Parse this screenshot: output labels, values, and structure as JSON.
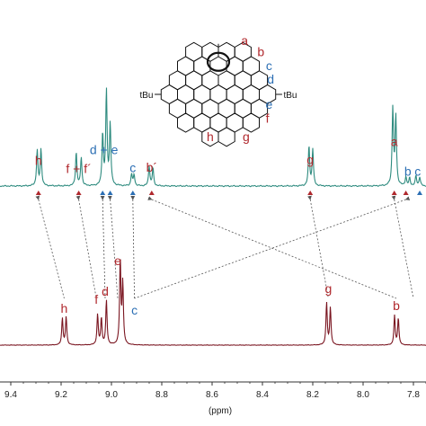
{
  "chart_data": {
    "type": "line",
    "title": "",
    "xlabel": "(ppm)",
    "ylabel": "",
    "xlim": [
      9.42,
      7.76
    ],
    "x_reversed": true,
    "x_ticks": [
      "9.4",
      "9.2",
      "9.0",
      "8.8",
      "8.6",
      "8.4",
      "8.2",
      "8.0",
      "7.8"
    ],
    "x_tick_values": [
      9.4,
      9.2,
      9.0,
      8.8,
      8.6,
      8.4,
      8.2,
      8.0,
      7.8
    ],
    "grid": false,
    "colors": {
      "top": "#2e8b7f",
      "bottom": "#7a1520",
      "red_label": "#b0282d",
      "blue_label": "#2c6fb4",
      "arrow": "#555555"
    },
    "series": [
      {
        "peaks": [
          {
            "x": 9.295,
            "h": 0.36
          },
          {
            "x": 9.28,
            "h": 0.37
          },
          {
            "x": 9.14,
            "h": 0.34
          },
          {
            "x": 9.12,
            "h": 0.29
          },
          {
            "x": 9.035,
            "h": 0.52
          },
          {
            "x": 9.02,
            "h": 0.95
          },
          {
            "x": 9.005,
            "h": 0.62
          },
          {
            "x": 8.92,
            "h": 0.12
          },
          {
            "x": 8.91,
            "h": 0.11
          },
          {
            "x": 8.85,
            "h": 0.2
          },
          {
            "x": 8.835,
            "h": 0.18
          },
          {
            "x": 8.215,
            "h": 0.4
          },
          {
            "x": 8.2,
            "h": 0.37
          },
          {
            "x": 7.882,
            "h": 0.78
          },
          {
            "x": 7.87,
            "h": 0.7
          },
          {
            "x": 7.83,
            "h": 0.09
          },
          {
            "x": 7.815,
            "h": 0.08
          },
          {
            "x": 7.79,
            "h": 0.1
          },
          {
            "x": 7.775,
            "h": 0.09
          }
        ],
        "labels": [
          {
            "text": "h",
            "x": 9.29,
            "color": "red",
            "pos": "above"
          },
          {
            "text": "f + f´",
            "x": 9.13,
            "color": "red",
            "pos": "above"
          },
          {
            "text": "d + e",
            "x": 9.03,
            "color": "blue",
            "pos": "above"
          },
          {
            "text": "c",
            "x": 8.915,
            "color": "blue",
            "pos": "above"
          },
          {
            "text": "b´",
            "x": 8.84,
            "color": "red",
            "pos": "above"
          },
          {
            "text": "g",
            "x": 8.21,
            "color": "red",
            "pos": "above"
          },
          {
            "text": "a",
            "x": 7.876,
            "color": "red",
            "pos": "above"
          },
          {
            "text": "b",
            "x": 7.822,
            "color": "blue",
            "pos": "above"
          },
          {
            "text": "c",
            "x": 7.783,
            "color": "blue",
            "pos": "above"
          }
        ],
        "markers": [
          {
            "x": 9.29,
            "color": "red"
          },
          {
            "x": 9.13,
            "color": "red"
          },
          {
            "x": 9.035,
            "color": "blue"
          },
          {
            "x": 9.005,
            "color": "blue"
          },
          {
            "x": 8.915,
            "color": "blue"
          },
          {
            "x": 8.84,
            "color": "red"
          },
          {
            "x": 8.21,
            "color": "red"
          },
          {
            "x": 7.876,
            "color": "red"
          },
          {
            "x": 7.83,
            "color": "red"
          },
          {
            "x": 7.775,
            "color": "blue"
          }
        ]
      },
      {
        "peaks": [
          {
            "x": 9.195,
            "h": 0.23
          },
          {
            "x": 9.18,
            "h": 0.24
          },
          {
            "x": 9.055,
            "h": 0.26
          },
          {
            "x": 9.04,
            "h": 0.23
          },
          {
            "x": 9.02,
            "h": 0.38
          },
          {
            "x": 8.965,
            "h": 0.72
          },
          {
            "x": 8.955,
            "h": 0.52
          },
          {
            "x": 8.145,
            "h": 0.36
          },
          {
            "x": 8.13,
            "h": 0.32
          },
          {
            "x": 7.875,
            "h": 0.25
          },
          {
            "x": 7.86,
            "h": 0.23
          }
        ],
        "labels": [
          {
            "text": "h",
            "x": 9.188,
            "color": "red"
          },
          {
            "text": "f",
            "x": 9.06,
            "color": "red"
          },
          {
            "text": "d",
            "x": 9.025,
            "color": "red"
          },
          {
            "text": "e",
            "x": 8.975,
            "color": "red"
          },
          {
            "text": "c",
            "x": 8.93,
            "color": "blue"
          },
          {
            "text": "g",
            "x": 8.138,
            "color": "red"
          },
          {
            "text": "b",
            "x": 7.868,
            "color": "red"
          }
        ]
      }
    ],
    "correlations": [
      {
        "from": 9.29,
        "to": 9.188
      },
      {
        "from": 9.13,
        "to": 9.06
      },
      {
        "from": 9.035,
        "to": 9.025
      },
      {
        "from": 9.005,
        "to": 8.975
      },
      {
        "from": 8.915,
        "to": 8.93
      },
      {
        "from": 8.21,
        "to": 8.138
      },
      {
        "from": 8.84,
        "to": 7.868
      },
      {
        "from": 7.83,
        "to": 8.93
      },
      {
        "from": 7.876,
        "to": 7.8
      }
    ]
  },
  "structure": {
    "labels": [
      "a",
      "b",
      "c",
      "d",
      "e",
      "f",
      "g",
      "h"
    ],
    "substituent": "tBu"
  }
}
